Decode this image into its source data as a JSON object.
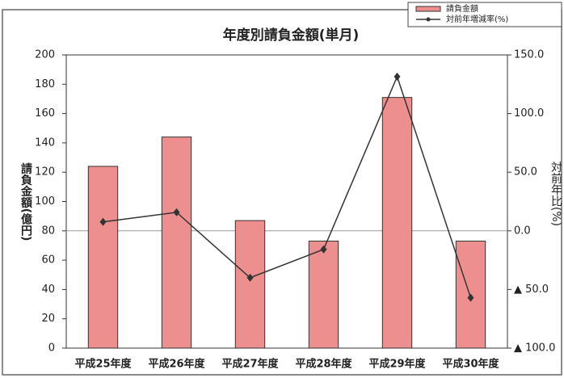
{
  "chart_data": {
    "type": "bar_line",
    "title": "年度別請負金額(単月)",
    "y_label": "請負金額(億円)",
    "y2_label": "対前年比(%)",
    "categories": [
      "平成25年度",
      "平成26年度",
      "平成27年度",
      "平成28年度",
      "平成29年度",
      "平成30年度"
    ],
    "series": [
      {
        "name": "請負金額",
        "type": "bar",
        "color": "#ee8f8f",
        "values": [
          124,
          144,
          87,
          73,
          171,
          73
        ]
      },
      {
        "name": "対前年増減率(%)",
        "type": "line",
        "axis": "y2",
        "color": "#333333",
        "values": [
          7.6,
          15.8,
          -40,
          -15.8,
          131.5,
          -57
        ]
      }
    ],
    "ylim": [
      0,
      200
    ],
    "yticks": [
      0,
      20,
      40,
      60,
      80,
      100,
      120,
      140,
      160,
      180,
      200
    ],
    "y2lim": [
      -100,
      150
    ],
    "y2ticks": [
      {
        "value": -100,
        "label": "▲ 100.0"
      },
      {
        "value": -50,
        "label": "▲ 50.0"
      },
      {
        "value": 0,
        "label": "0.0"
      },
      {
        "value": 50,
        "label": "50.0"
      },
      {
        "value": 100,
        "label": "100.0"
      },
      {
        "value": 150,
        "label": "150.0"
      }
    ],
    "zero_line_y2": true
  }
}
